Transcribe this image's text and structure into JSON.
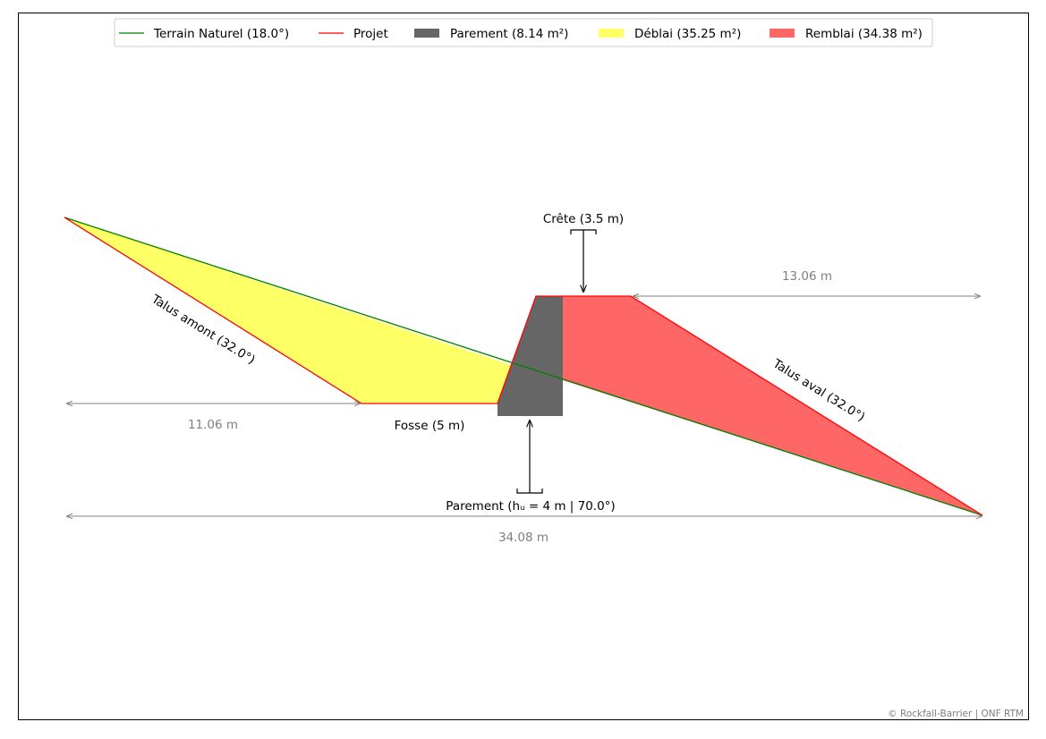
{
  "legend": {
    "items": [
      {
        "label": "Terrain Naturel (18.0°)",
        "kind": "line",
        "color": "#008000"
      },
      {
        "label": "Projet",
        "kind": "line",
        "color": "#ff0000"
      },
      {
        "label": "Parement (8.14 m²)",
        "kind": "patch",
        "color": "#666666"
      },
      {
        "label": "Déblai (35.25 m²)",
        "kind": "patch",
        "color": "#ffff66"
      },
      {
        "label": "Remblai (34.38 m²)",
        "kind": "patch",
        "color": "#ff6666"
      }
    ]
  },
  "labels": {
    "crete": "Crête (3.5 m)",
    "talus_amont": "Talus amont (32.0°)",
    "talus_aval": "Talus aval (32.0°)",
    "fosse": "Fosse (5 m)",
    "parement": "Parement (hᵤ = 4 m | 70.0°)"
  },
  "dimensions": {
    "upstream": "11.06 m",
    "downstream": "13.06 m",
    "total": "34.08 m"
  },
  "copyright": "© Rockfall-Barrier | ONF RTM",
  "colors": {
    "terrain": "#008000",
    "projet": "#ff0000",
    "parement": "#666666",
    "deblai": "#ffff66",
    "remblai": "#ff6666",
    "dimension": "#808080"
  }
}
